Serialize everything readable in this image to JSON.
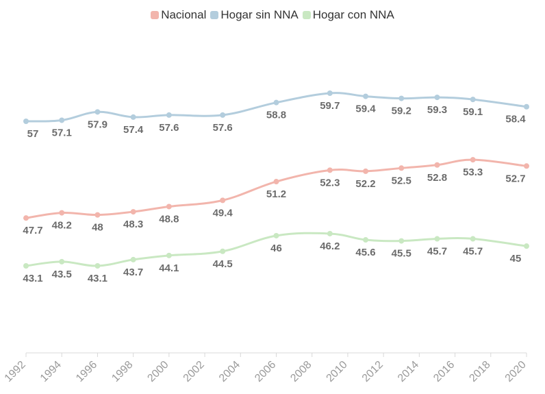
{
  "chart_data": {
    "type": "line",
    "title": "",
    "xlabel": "",
    "ylabel": "",
    "x_ticks": [
      "1992",
      "1994",
      "1996",
      "1998",
      "2000",
      "2002",
      "2004",
      "2006",
      "2008",
      "2010",
      "2012",
      "2014",
      "2016",
      "2018",
      "2020"
    ],
    "xlim": [
      1992,
      2020
    ],
    "ylim": [
      35,
      65
    ],
    "grid": false,
    "legend_position": "top-center",
    "series": [
      {
        "name": "Nacional",
        "color": "#f2b5ac",
        "x": [
          1992,
          1994,
          1996,
          1998,
          2000,
          2003,
          2006,
          2009,
          2011,
          2013,
          2015,
          2017,
          2020
        ],
        "values": [
          47.7,
          48.2,
          48,
          48.3,
          48.8,
          49.4,
          51.2,
          52.3,
          52.2,
          52.5,
          52.8,
          53.3,
          52.7
        ],
        "labels": [
          "47.7",
          "48.2",
          "48",
          "48.3",
          "48.8",
          "49.4",
          "51.2",
          "52.3",
          "52.2",
          "52.5",
          "52.8",
          "53.3",
          "52.7"
        ]
      },
      {
        "name": "Hogar sin NNA",
        "color": "#b3cddd",
        "x": [
          1992,
          1994,
          1996,
          1998,
          2000,
          2003,
          2006,
          2009,
          2011,
          2013,
          2015,
          2017,
          2020
        ],
        "values": [
          57,
          57.1,
          57.9,
          57.4,
          57.6,
          57.6,
          58.8,
          59.7,
          59.4,
          59.2,
          59.3,
          59.1,
          58.4
        ],
        "labels": [
          "57",
          "57.1",
          "57.9",
          "57.4",
          "57.6",
          "57.6",
          "58.8",
          "59.7",
          "59.4",
          "59.2",
          "59.3",
          "59.1",
          "58.4"
        ]
      },
      {
        "name": "Hogar con NNA",
        "color": "#c9e8c2",
        "x": [
          1992,
          1994,
          1996,
          1998,
          2000,
          2003,
          2006,
          2009,
          2011,
          2013,
          2015,
          2017,
          2020
        ],
        "values": [
          43.1,
          43.5,
          43.1,
          43.7,
          44.1,
          44.5,
          46,
          46.2,
          45.6,
          45.5,
          45.7,
          45.7,
          45
        ],
        "labels": [
          "43.1",
          "43.5",
          "43.1",
          "43.7",
          "44.1",
          "44.5",
          "46",
          "46.2",
          "45.6",
          "45.5",
          "45.7",
          "45.7",
          "45"
        ]
      }
    ],
    "axis_color": "#d8d8d8",
    "label_color": "#6b6b6b",
    "tick_color": "#9a9a9a"
  }
}
